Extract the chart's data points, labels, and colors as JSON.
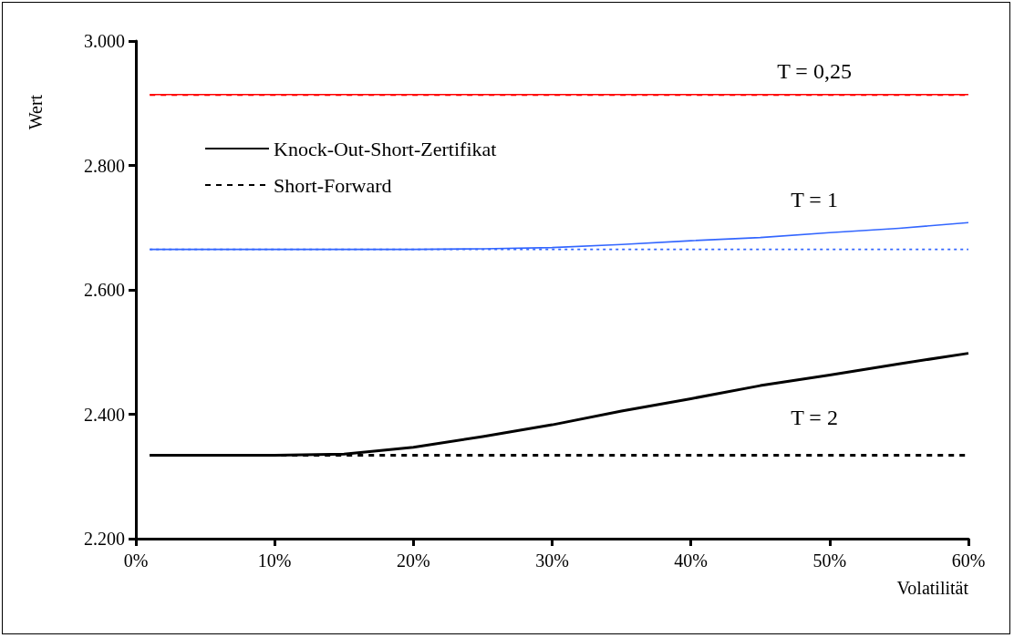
{
  "chart_data": {
    "type": "line",
    "xlabel": "Volatilität",
    "ylabel": "Wert",
    "xlim": [
      0,
      60
    ],
    "xticks": [
      {
        "value": 0,
        "label": "0%"
      },
      {
        "value": 10,
        "label": "10%"
      },
      {
        "value": 20,
        "label": "20%"
      },
      {
        "value": 30,
        "label": "30%"
      },
      {
        "value": 40,
        "label": "40%"
      },
      {
        "value": 50,
        "label": "50%"
      },
      {
        "value": 60,
        "label": "60%"
      }
    ],
    "ylim": [
      2200,
      3000
    ],
    "yticks": [
      {
        "value": 2200,
        "label": "2.200"
      },
      {
        "value": 2400,
        "label": "2.400"
      },
      {
        "value": 2600,
        "label": "2.600"
      },
      {
        "value": 2800,
        "label": "2.800"
      },
      {
        "value": 3000,
        "label": "3.000"
      }
    ],
    "x": [
      1,
      5,
      10,
      15,
      20,
      25,
      30,
      35,
      40,
      45,
      50,
      55,
      60
    ],
    "series": [
      {
        "color": "#ff0000",
        "line_style": "solid",
        "values": [
          2914,
          2914,
          2914,
          2914,
          2914,
          2914,
          2914,
          2914,
          2914,
          2914,
          2914,
          2914,
          2914
        ]
      },
      {
        "color": "#ff0000",
        "line_style": "dashed",
        "values": [
          2913,
          2913,
          2913,
          2913,
          2913,
          2913,
          2913,
          2913,
          2913,
          2913,
          2913,
          2913,
          2913
        ]
      },
      {
        "color": "#3366ff",
        "line_style": "solid",
        "values": [
          2665,
          2665,
          2665,
          2665,
          2665,
          2666,
          2668,
          2673,
          2679,
          2684,
          2692,
          2699,
          2708
        ]
      },
      {
        "color": "#3366ff",
        "line_style": "dotted",
        "values": [
          2665,
          2665,
          2665,
          2665,
          2665,
          2665,
          2665,
          2665,
          2665,
          2665,
          2665,
          2665,
          2665
        ]
      },
      {
        "name": "Knock-Out-Short-Zertifikat",
        "color": "#000000",
        "line_style": "solid",
        "values": [
          2334,
          2334,
          2334,
          2336,
          2347,
          2364,
          2383,
          2405,
          2425,
          2446,
          2463,
          2481,
          2498
        ]
      },
      {
        "name": "Short-Forward",
        "color": "#000000",
        "line_style": "dashed",
        "values": [
          2334,
          2334,
          2334,
          2334,
          2334,
          2334,
          2334,
          2334,
          2334,
          2334,
          2334,
          2334,
          2334
        ]
      }
    ],
    "annotations": [
      "T = 0,25",
      "T = 1",
      "T = 2"
    ],
    "marker": "none",
    "grid": false,
    "legend": "top left"
  }
}
